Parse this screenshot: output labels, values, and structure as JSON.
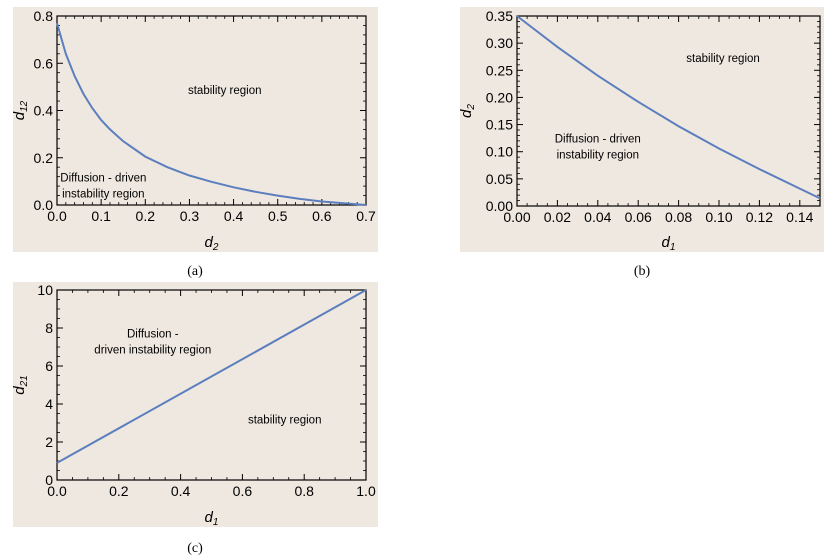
{
  "chart_data": [
    {
      "type": "line",
      "caption": "(a)",
      "xlabel_main": "d",
      "xlabel_sub": "2",
      "ylabel_main": "d",
      "ylabel_sub": "12",
      "xlim": [
        0,
        0.7
      ],
      "ylim": [
        0,
        0.8
      ],
      "xticks": [
        "0.0",
        "0.1",
        "0.2",
        "0.3",
        "0.4",
        "0.5",
        "0.6",
        "0.7"
      ],
      "yticks": [
        "0.0",
        "0.2",
        "0.4",
        "0.6",
        "0.8"
      ],
      "series": [
        {
          "x": [
            0.0,
            0.02,
            0.04,
            0.06,
            0.08,
            0.1,
            0.12,
            0.15,
            0.2,
            0.25,
            0.3,
            0.35,
            0.4,
            0.45,
            0.5,
            0.55,
            0.6,
            0.65,
            0.7
          ],
          "y": [
            0.77,
            0.64,
            0.545,
            0.47,
            0.41,
            0.36,
            0.32,
            0.27,
            0.205,
            0.16,
            0.125,
            0.098,
            0.075,
            0.056,
            0.04,
            0.026,
            0.015,
            0.007,
            0.0
          ]
        }
      ],
      "color": "#5b7fbe",
      "regions": [
        {
          "lines": [
            "stability region"
          ],
          "x": 0.38,
          "y": 0.47
        },
        {
          "lines": [
            "Diffusion -  driven",
            "instability region"
          ],
          "x": 0.105,
          "y": 0.1
        }
      ]
    },
    {
      "type": "line",
      "caption": "(b)",
      "xlabel_main": "d",
      "xlabel_sub": "1",
      "ylabel_main": "d",
      "ylabel_sub": "2",
      "xlim": [
        0,
        0.15
      ],
      "ylim": [
        0,
        0.35
      ],
      "xticks": [
        "0.00",
        "0.02",
        "0.04",
        "0.06",
        "0.08",
        "0.10",
        "0.12",
        "0.14"
      ],
      "yticks": [
        "0.00",
        "0.05",
        "0.10",
        "0.15",
        "0.20",
        "0.25",
        "0.30",
        "0.35"
      ],
      "series": [
        {
          "x": [
            0.0,
            0.02,
            0.04,
            0.06,
            0.08,
            0.1,
            0.12,
            0.14,
            0.15
          ],
          "y": [
            0.35,
            0.293,
            0.24,
            0.192,
            0.147,
            0.106,
            0.068,
            0.032,
            0.014
          ]
        }
      ],
      "color": "#5b7fbe",
      "regions": [
        {
          "lines": [
            "stability region"
          ],
          "x": 0.102,
          "y": 0.265
        },
        {
          "lines": [
            "Diffusion -  driven",
            "instability region"
          ],
          "x": 0.04,
          "y": 0.117
        }
      ]
    },
    {
      "type": "line",
      "caption": "(c)",
      "xlabel_main": "d",
      "xlabel_sub": "1",
      "ylabel_main": "d",
      "ylabel_sub": "21",
      "xlim": [
        0,
        1.0
      ],
      "ylim": [
        0,
        10
      ],
      "xticks": [
        "0.0",
        "0.2",
        "0.4",
        "0.6",
        "0.8",
        "1.0"
      ],
      "yticks": [
        "0",
        "2",
        "4",
        "6",
        "8",
        "10"
      ],
      "series": [
        {
          "x": [
            0.0,
            1.0
          ],
          "y": [
            0.9,
            10.0
          ]
        }
      ],
      "color": "#5b7fbe",
      "regions": [
        {
          "lines": [
            "Diffusion -",
            "driven instability region"
          ],
          "x": 0.31,
          "y": 7.5
        },
        {
          "lines": [
            "stability region"
          ],
          "x": 0.737,
          "y": 2.97
        }
      ]
    }
  ]
}
